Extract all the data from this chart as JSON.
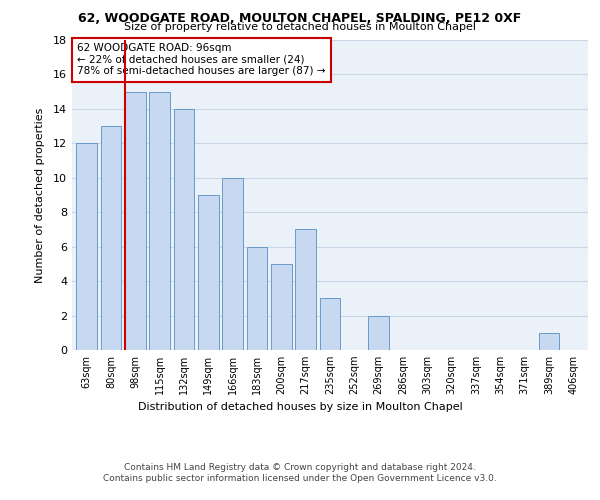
{
  "title1": "62, WOODGATE ROAD, MOULTON CHAPEL, SPALDING, PE12 0XF",
  "title2": "Size of property relative to detached houses in Moulton Chapel",
  "xlabel": "Distribution of detached houses by size in Moulton Chapel",
  "ylabel": "Number of detached properties",
  "categories": [
    "63sqm",
    "80sqm",
    "98sqm",
    "115sqm",
    "132sqm",
    "149sqm",
    "166sqm",
    "183sqm",
    "200sqm",
    "217sqm",
    "235sqm",
    "252sqm",
    "269sqm",
    "286sqm",
    "303sqm",
    "320sqm",
    "337sqm",
    "354sqm",
    "371sqm",
    "389sqm",
    "406sqm"
  ],
  "values": [
    12,
    13,
    15,
    15,
    14,
    9,
    10,
    6,
    5,
    7,
    3,
    0,
    2,
    0,
    0,
    0,
    0,
    0,
    0,
    1,
    0
  ],
  "bar_color": "#c6d9f0",
  "bar_edge_color": "#5a8fc2",
  "subject_line_color": "#cc0000",
  "annotation_text": "62 WOODGATE ROAD: 96sqm\n← 22% of detached houses are smaller (24)\n78% of semi-detached houses are larger (87) →",
  "annotation_box_color": "#ffffff",
  "annotation_box_edge_color": "#cc0000",
  "ylim": [
    0,
    18
  ],
  "yticks": [
    0,
    2,
    4,
    6,
    8,
    10,
    12,
    14,
    16,
    18
  ],
  "grid_color": "#c8d8e8",
  "background_color": "#eaf1f8",
  "footer_line1": "Contains HM Land Registry data © Crown copyright and database right 2024.",
  "footer_line2": "Contains public sector information licensed under the Open Government Licence v3.0."
}
